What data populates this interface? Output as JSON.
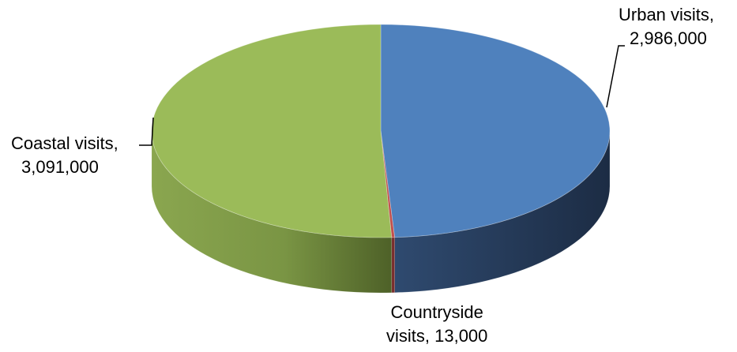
{
  "chart_data": {
    "type": "pie",
    "title": "",
    "categories": [
      "Urban visits",
      "Countryside visits",
      "Coastal visits"
    ],
    "values": [
      2986000,
      13000,
      3091000
    ],
    "labels": [
      {
        "line1": "Urban visits,",
        "line2": "2,986,000"
      },
      {
        "line1": "Countryside",
        "line2": "visits, 13,000"
      },
      {
        "line1": "Coastal visits,",
        "line2": "3,091,000"
      }
    ],
    "legend": "none",
    "style": "3d"
  },
  "colors": {
    "urban_top": "#4f81bd",
    "urban_side_light": "#2f4a6f",
    "urban_side_dark": "#1c2c44",
    "countryside_top": "#c0504d",
    "countryside_side": "#7a2f2d",
    "coastal_top": "#9bbb59",
    "coastal_side_light": "#8aa64f",
    "coastal_side_dark": "#4e6128",
    "leader_line": "#000000"
  }
}
